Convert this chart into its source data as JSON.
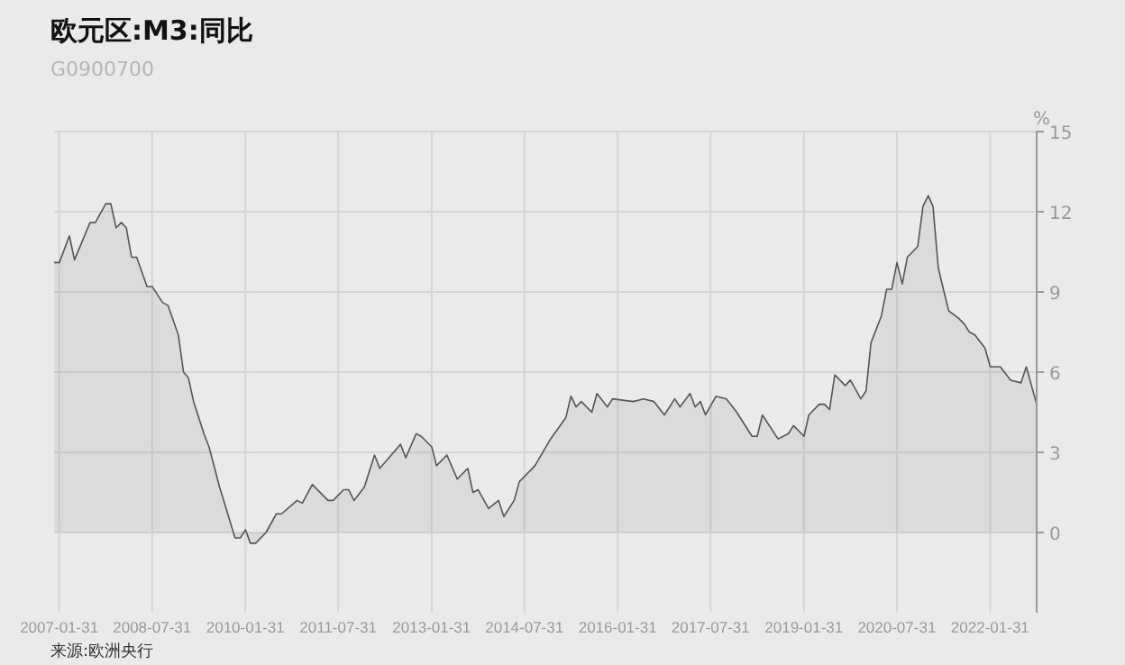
{
  "chart_data": {
    "type": "area",
    "title": "欧元区:M3:同比",
    "subtitle": "G0900700",
    "ylabel": "%",
    "annotations": [
      "来源:欧洲央行"
    ],
    "x": [
      "2007-01",
      "2007-02",
      "2007-04",
      "2007-05",
      "2007-08",
      "2007-09",
      "2007-11",
      "2007-12",
      "2008-01",
      "2008-02",
      "2008-03",
      "2008-04",
      "2008-05",
      "2008-07",
      "2008-08",
      "2008-10",
      "2008-11",
      "2009-01",
      "2009-02",
      "2009-03",
      "2009-04",
      "2009-06",
      "2009-07",
      "2009-09",
      "2009-12",
      "2010-01",
      "2010-02",
      "2010-03",
      "2010-04",
      "2010-06",
      "2010-08",
      "2010-09",
      "2010-12",
      "2011-01",
      "2011-03",
      "2011-06",
      "2011-07",
      "2011-09",
      "2011-10",
      "2011-11",
      "2012-01",
      "2012-03",
      "2012-04",
      "2012-08",
      "2012-09",
      "2012-11",
      "2012-12",
      "2013-02",
      "2013-03",
      "2013-05",
      "2013-07",
      "2013-09",
      "2013-10",
      "2013-11",
      "2014-01",
      "2014-03",
      "2014-04",
      "2014-06",
      "2014-07",
      "2014-10",
      "2015-01",
      "2015-04",
      "2015-05",
      "2015-06",
      "2015-07",
      "2015-09",
      "2015-10",
      "2015-12",
      "2016-01",
      "2016-05",
      "2016-07",
      "2016-09",
      "2016-11",
      "2017-01",
      "2017-02",
      "2017-04",
      "2017-05",
      "2017-06",
      "2017-07",
      "2017-09",
      "2017-11",
      "2018-01",
      "2018-04",
      "2018-05",
      "2018-06",
      "2018-09",
      "2018-11",
      "2018-12",
      "2019-02",
      "2019-03",
      "2019-05",
      "2019-06",
      "2019-07",
      "2019-08",
      "2019-10",
      "2019-11",
      "2020-01",
      "2020-02",
      "2020-03",
      "2020-05",
      "2020-06",
      "2020-07",
      "2020-08",
      "2020-09",
      "2020-10",
      "2020-12",
      "2021-01",
      "2021-02",
      "2021-03",
      "2021-04",
      "2021-05",
      "2021-06",
      "2021-08",
      "2021-09",
      "2021-10",
      "2021-11",
      "2022-01",
      "2022-02",
      "2022-03",
      "2022-04",
      "2022-06",
      "2022-08",
      "2022-09",
      "2022-11"
    ],
    "series": [
      {
        "color": "#555555",
        "values": [
          10.1,
          10.1,
          11.1,
          10.2,
          11.6,
          11.6,
          12.3,
          12.3,
          11.4,
          11.6,
          11.4,
          10.3,
          10.3,
          9.2,
          9.2,
          8.6,
          8.5,
          7.4,
          6.0,
          5.8,
          4.9,
          3.7,
          3.2,
          1.7,
          -0.2,
          -0.2,
          0.1,
          -0.4,
          -0.4,
          0,
          0.7,
          0.7,
          1.2,
          1.1,
          1.8,
          1.2,
          1.2,
          1.6,
          1.6,
          1.2,
          1.7,
          2.9,
          2.4,
          3.3,
          2.8,
          3.7,
          3.6,
          3.2,
          2.5,
          2.9,
          2.0,
          2.4,
          1.5,
          1.6,
          0.9,
          1.2,
          0.6,
          1.2,
          1.9,
          2.5,
          3.5,
          4.3,
          5.1,
          4.7,
          4.9,
          4.5,
          5.2,
          4.7,
          5.0,
          4.9,
          5.0,
          4.9,
          4.4,
          5.0,
          4.7,
          5.2,
          4.7,
          4.9,
          4.4,
          5.1,
          5.0,
          4.5,
          3.6,
          3.6,
          4.4,
          3.5,
          3.7,
          4.0,
          3.6,
          4.4,
          4.8,
          4.8,
          4.6,
          5.9,
          5.5,
          5.7,
          5.0,
          5.3,
          7.1,
          8.1,
          9.1,
          9.1,
          10.1,
          9.3,
          10.3,
          10.7,
          12.2,
          12.6,
          12.2,
          9.9,
          9.1,
          8.3,
          8.0,
          7.8,
          7.5,
          7.4,
          6.9,
          6.2,
          6.2,
          6.2,
          5.7,
          5.6,
          6.2,
          4.8
        ]
      }
    ],
    "xlim": [
      "2007-01",
      "2022-11"
    ],
    "xticks": [
      {
        "value": "2007-01-31",
        "label": "2007-01-31"
      },
      {
        "value": "2008-07-31",
        "label": "2008-07-31"
      },
      {
        "value": "2010-01-31",
        "label": "2010-01-31"
      },
      {
        "value": "2011-07-31",
        "label": "2011-07-31"
      },
      {
        "value": "2013-01-31",
        "label": "2013-01-31"
      },
      {
        "value": "2014-07-31",
        "label": "2014-07-31"
      },
      {
        "value": "2016-01-31",
        "label": "2016-01-31"
      },
      {
        "value": "2017-07-31",
        "label": "2017-07-31"
      },
      {
        "value": "2019-01-31",
        "label": "2019-01-31"
      },
      {
        "value": "2020-07-31",
        "label": "2020-07-31"
      },
      {
        "value": "2022-01-31",
        "label": "2022-01-31"
      }
    ],
    "ylim": [
      -3,
      15
    ],
    "yticks": [
      0,
      3,
      6,
      9,
      12,
      15
    ],
    "grid": true
  }
}
